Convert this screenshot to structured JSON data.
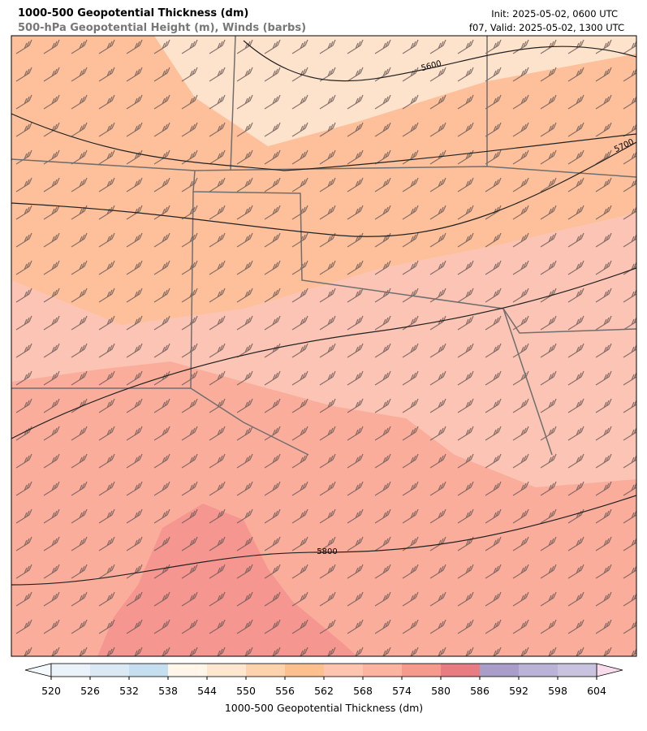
{
  "header": {
    "title": "1000-500 Geopotential Thickness (dm)",
    "subtitle": "500-hPa Geopotential Height (m), Winds (barbs)",
    "init": "Init: 2025-05-02, 0600 UTC",
    "valid": "f07, Valid: 2025-05-02, 1300 UTC"
  },
  "map": {
    "contour_labels": [
      "5600",
      "5700",
      "5800"
    ]
  },
  "colorbar": {
    "levels": [
      520,
      526,
      532,
      538,
      544,
      550,
      556,
      562,
      568,
      574,
      580,
      586,
      592,
      598,
      604
    ],
    "colors": [
      "#eaf3fa",
      "#dbe9f5",
      "#c6dff0",
      "#fff5e8",
      "#fee6cf",
      "#fdd3ad",
      "#fcc08f",
      "#fdc4b0",
      "#fcb4a0",
      "#f79a8e",
      "#e77d82",
      "#a99ec9",
      "#bab3d7",
      "#c9c3df"
    ],
    "under_color": "#f4f9fd",
    "over_color": "#f8dcec",
    "label": "1000-500 Geopotential Thickness (dm)"
  }
}
